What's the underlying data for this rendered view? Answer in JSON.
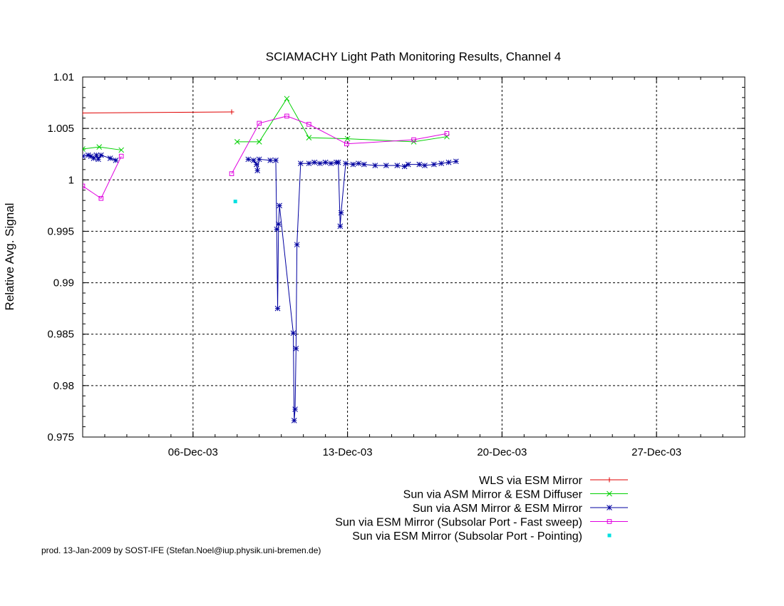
{
  "chart_data": {
    "type": "line",
    "title": "SCIAMACHY Light Path Monitoring Results, Channel 4",
    "ylabel": "Relative Avg. Signal",
    "xlabel": "",
    "x_is_date": true,
    "xlim": [
      "2003-12-01",
      "2003-12-31"
    ],
    "ylim": [
      0.975,
      1.01
    ],
    "grid": true,
    "legend_position": "bottom-right",
    "x_ticks": [
      {
        "x": "2003-12-06",
        "label": "06-Dec-03"
      },
      {
        "x": "2003-12-13",
        "label": "13-Dec-03"
      },
      {
        "x": "2003-12-20",
        "label": "20-Dec-03"
      },
      {
        "x": "2003-12-27",
        "label": "27-Dec-03"
      }
    ],
    "y_ticks": [
      {
        "y": 1.01,
        "label": "1.01"
      },
      {
        "y": 1.005,
        "label": "1.005"
      },
      {
        "y": 1.0,
        "label": "1"
      },
      {
        "y": 0.995,
        "label": "0.995"
      },
      {
        "y": 0.99,
        "label": "0.99"
      },
      {
        "y": 0.985,
        "label": "0.985"
      },
      {
        "y": 0.98,
        "label": "0.98"
      },
      {
        "y": 0.975,
        "label": "0.975"
      }
    ],
    "series": [
      {
        "name": "WLS via ESM Mirror",
        "color": "#e00000",
        "marker": "plus",
        "segments": [
          [
            [
              "2003-12-01 00:00",
              1.0065
            ],
            [
              "2003-12-07 18:00",
              1.0066
            ]
          ]
        ]
      },
      {
        "name": "Sun via ASM Mirror & ESM Diffuser",
        "color": "#00d000",
        "marker": "x",
        "segments": [
          [
            [
              "2003-12-01 00:00",
              1.003
            ],
            [
              "2003-12-01 18:00",
              1.0032
            ],
            [
              "2003-12-02 18:00",
              1.0029
            ]
          ],
          [
            [
              "2003-12-08 00:00",
              1.0037
            ],
            [
              "2003-12-09 00:00",
              1.0037
            ],
            [
              "2003-12-10 06:00",
              1.0079
            ],
            [
              "2003-12-11 06:00",
              1.0041
            ],
            [
              "2003-12-13 00:00",
              1.004
            ],
            [
              "2003-12-16 00:00",
              1.0037
            ],
            [
              "2003-12-17 12:00",
              1.0042
            ]
          ]
        ]
      },
      {
        "name": "Sun via ASM Mirror & ESM Mirror",
        "color": "#0000a0",
        "marker": "star",
        "segments": [
          [
            [
              "2003-12-01 00:00",
              1.0023
            ],
            [
              "2003-12-01 06:00",
              1.0024
            ],
            [
              "2003-12-01 09:00",
              1.0023
            ],
            [
              "2003-12-01 12:00",
              1.0021
            ],
            [
              "2003-12-01 15:00",
              1.0024
            ],
            [
              "2003-12-01 17:00",
              1.002
            ],
            [
              "2003-12-01 20:00",
              1.0024
            ],
            [
              "2003-12-02 06:00",
              1.0021
            ],
            [
              "2003-12-02 12:00",
              1.0019
            ]
          ],
          [
            [
              "2003-12-08 12:00",
              1.002
            ],
            [
              "2003-12-08 18:00",
              1.0019
            ],
            [
              "2003-12-08 21:00",
              1.0015
            ],
            [
              "2003-12-08 22:00",
              1.0009
            ],
            [
              "2003-12-09 00:00",
              1.002
            ],
            [
              "2003-12-09 12:00",
              1.0019
            ],
            [
              "2003-12-09 18:00",
              1.0019
            ],
            [
              "2003-12-09 19:00",
              0.9952
            ],
            [
              "2003-12-09 20:00",
              0.9875
            ],
            [
              "2003-12-09 21:00",
              0.9957
            ],
            [
              "2003-12-09 22:00",
              0.9975
            ],
            [
              "2003-12-10 13:00",
              0.9851
            ],
            [
              "2003-12-10 14:00",
              0.9766
            ],
            [
              "2003-12-10 15:00",
              0.9777
            ],
            [
              "2003-12-10 16:00",
              0.9836
            ],
            [
              "2003-12-10 17:00",
              0.9937
            ],
            [
              "2003-12-10 21:00",
              1.0016
            ],
            [
              "2003-12-11 06:00",
              1.0016
            ],
            [
              "2003-12-11 12:00",
              1.0017
            ],
            [
              "2003-12-11 18:00",
              1.0016
            ],
            [
              "2003-12-12 00:00",
              1.0017
            ],
            [
              "2003-12-12 06:00",
              1.0016
            ],
            [
              "2003-12-12 12:00",
              1.0017
            ],
            [
              "2003-12-12 14:00",
              1.0017
            ],
            [
              "2003-12-12 16:00",
              0.9955
            ],
            [
              "2003-12-12 17:00",
              0.9968
            ],
            [
              "2003-12-12 22:00",
              1.0016
            ],
            [
              "2003-12-13 06:00",
              1.0015
            ],
            [
              "2003-12-13 12:00",
              1.0016
            ],
            [
              "2003-12-13 18:00",
              1.0015
            ],
            [
              "2003-12-14 06:00",
              1.0014
            ],
            [
              "2003-12-14 18:00",
              1.0014
            ],
            [
              "2003-12-15 06:00",
              1.0014
            ],
            [
              "2003-12-15 14:00",
              1.0013
            ],
            [
              "2003-12-15 18:00",
              1.0015
            ],
            [
              "2003-12-16 06:00",
              1.0015
            ],
            [
              "2003-12-16 12:00",
              1.0014
            ],
            [
              "2003-12-16 22:00",
              1.0015
            ],
            [
              "2003-12-17 06:00",
              1.0016
            ],
            [
              "2003-12-17 14:00",
              1.0017
            ],
            [
              "2003-12-17 22:00",
              1.0018
            ]
          ]
        ]
      },
      {
        "name": "Sun via ESM Mirror (Subsolar Port - Fast sweep)",
        "color": "#e000e0",
        "marker": "square",
        "segments": [
          [
            [
              "2003-12-01 00:00",
              0.9994
            ],
            [
              "2003-12-01 20:00",
              0.9982
            ],
            [
              "2003-12-02 18:00",
              1.0023
            ]
          ],
          [
            [
              "2003-12-07 18:00",
              1.0006
            ],
            [
              "2003-12-09 00:00",
              1.0055
            ],
            [
              "2003-12-10 06:00",
              1.0062
            ],
            [
              "2003-12-11 06:00",
              1.0054
            ],
            [
              "2003-12-12 23:00",
              1.0035
            ],
            [
              "2003-12-16 00:00",
              1.0039
            ],
            [
              "2003-12-17 12:00",
              1.0045
            ]
          ]
        ]
      },
      {
        "name": "Sun via ESM Mirror (Subsolar Port - Pointing)",
        "color": "#00e0e0",
        "marker": "dot",
        "segments": [
          [
            [
              "2003-12-07 22:00",
              0.9979
            ]
          ]
        ]
      }
    ]
  },
  "footer": "prod. 13-Jan-2009 by SOST-IFE (Stefan.Noel@iup.physik.uni-bremen.de)"
}
